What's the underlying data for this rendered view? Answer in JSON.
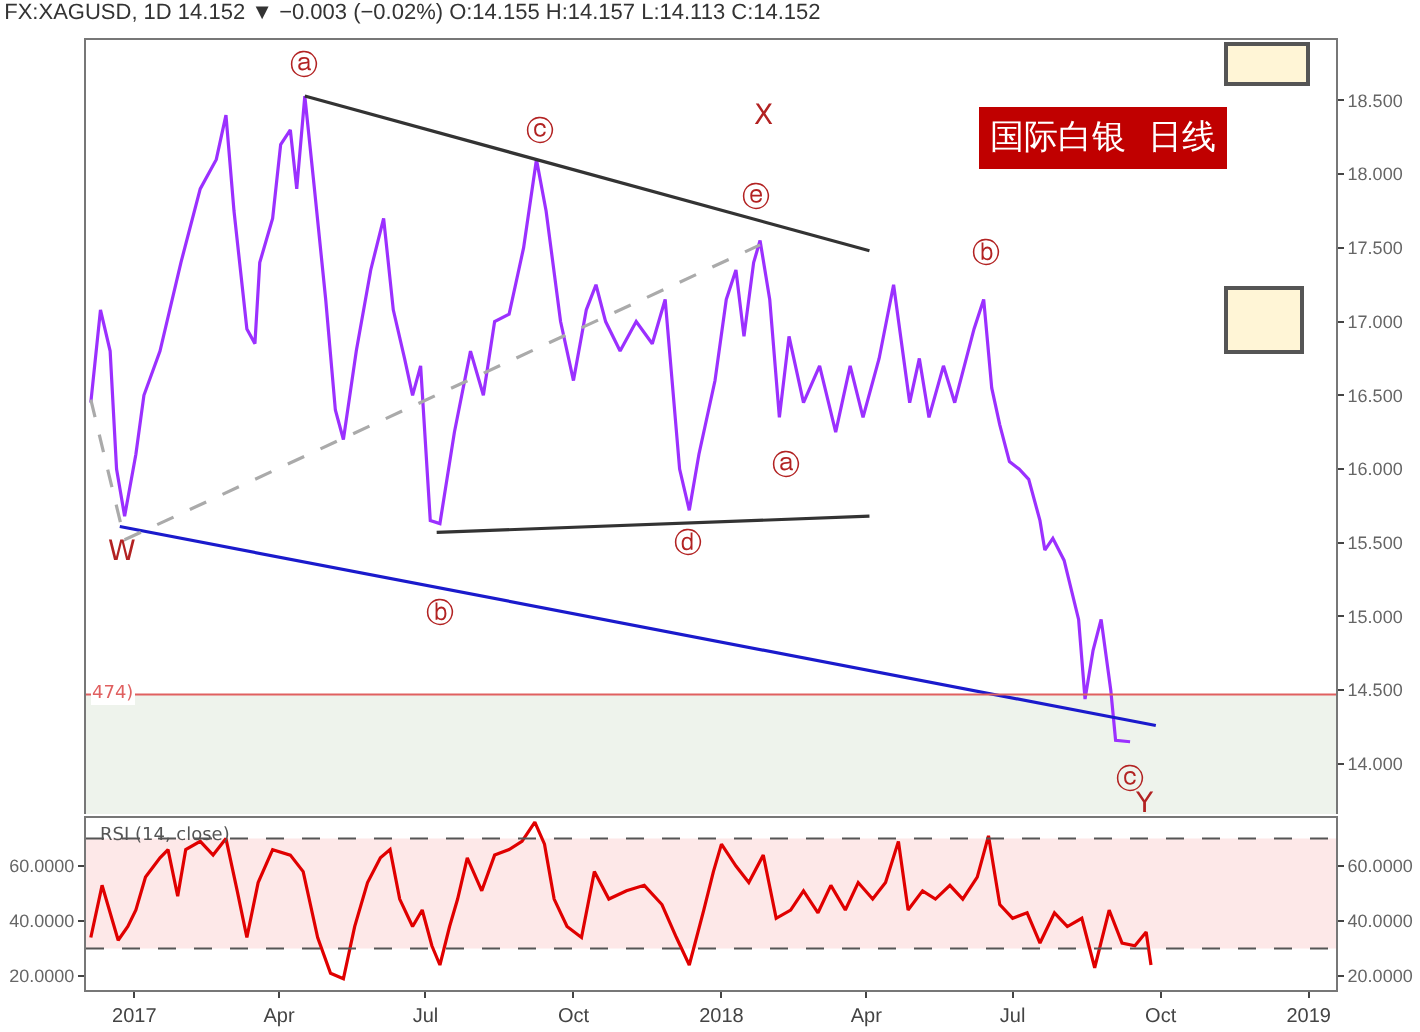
{
  "chart_data": [
    {
      "type": "line",
      "title": "FX:XAGUSD, 1D 14.152 ▼ −0.003 (−0.02%) O:14.155 H:14.157 L:14.113 C:14.152",
      "xlim": [
        "2016-12-02",
        "2019-01-18"
      ],
      "ylim": [
        13.66,
        18.91
      ],
      "yticks": [
        {
          "value": 14,
          "label": "14.000"
        },
        {
          "value": 14.5,
          "label": "14.500"
        },
        {
          "value": 15,
          "label": "15.000"
        },
        {
          "value": 15.5,
          "label": "15.500"
        },
        {
          "value": 16,
          "label": "16.000"
        },
        {
          "value": 16.5,
          "label": "16.500"
        },
        {
          "value": 17,
          "label": "17.000"
        },
        {
          "value": 17.5,
          "label": "17.500"
        },
        {
          "value": 18,
          "label": "18.000"
        },
        {
          "value": 18.5,
          "label": "18.500"
        }
      ],
      "tick_labels": "y",
      "grid": false,
      "series": [
        {
          "color": "#9b30ff",
          "x": [
            "2016-12-05",
            "2016-12-11",
            "2016-12-17",
            "2016-12-21",
            "2016-12-26",
            "2017-01-02",
            "2017-01-07",
            "2017-01-17",
            "2017-01-30",
            "2017-02-11",
            "2017-02-21",
            "2017-02-27",
            "2017-03-04",
            "2017-03-12",
            "2017-03-17",
            "2017-03-20",
            "2017-03-28",
            "2017-04-02",
            "2017-04-08",
            "2017-04-12",
            "2017-04-17",
            "2017-04-23",
            "2017-04-30",
            "2017-05-06",
            "2017-05-11",
            "2017-05-19",
            "2017-05-28",
            "2017-06-05",
            "2017-06-11",
            "2017-06-18",
            "2017-06-23",
            "2017-06-28",
            "2017-07-04",
            "2017-07-10",
            "2017-07-19",
            "2017-07-29",
            "2017-08-06",
            "2017-08-13",
            "2017-08-22",
            "2017-08-31",
            "2017-09-08",
            "2017-09-14",
            "2017-09-23",
            "2017-10-01",
            "2017-10-09",
            "2017-10-15",
            "2017-10-21",
            "2017-10-30",
            "2017-11-09",
            "2017-11-19",
            "2017-11-27",
            "2017-12-06",
            "2017-12-12",
            "2017-12-18",
            "2017-12-28",
            "2018-01-04",
            "2018-01-10",
            "2018-01-15",
            "2018-01-21",
            "2018-01-25",
            "2018-01-31",
            "2018-02-06",
            "2018-02-12",
            "2018-02-21",
            "2018-03-03",
            "2018-03-13",
            "2018-03-22",
            "2018-03-30",
            "2018-04-09",
            "2018-04-18",
            "2018-04-28",
            "2018-05-04",
            "2018-05-10",
            "2018-05-19",
            "2018-05-26",
            "2018-06-07",
            "2018-06-13",
            "2018-06-18",
            "2018-06-23",
            "2018-06-29",
            "2018-07-05",
            "2018-07-11",
            "2018-07-18",
            "2018-07-21",
            "2018-07-26",
            "2018-08-02",
            "2018-08-11",
            "2018-08-15",
            "2018-08-20",
            "2018-08-25",
            "2018-08-31",
            "2018-09-03",
            "2018-09-12"
          ],
          "values": [
            16.45,
            17.08,
            16.8,
            16.0,
            15.68,
            16.1,
            16.5,
            16.8,
            17.4,
            17.9,
            18.1,
            18.4,
            17.75,
            16.95,
            16.85,
            17.4,
            17.7,
            18.2,
            18.3,
            17.9,
            18.53,
            17.9,
            17.15,
            16.4,
            16.2,
            16.8,
            17.35,
            17.7,
            17.08,
            16.75,
            16.5,
            16.7,
            15.65,
            15.63,
            16.25,
            16.8,
            16.5,
            17.0,
            17.05,
            17.5,
            18.1,
            17.75,
            17.0,
            16.6,
            17.08,
            17.25,
            17.0,
            16.8,
            17.0,
            16.85,
            17.15,
            16.0,
            15.72,
            16.1,
            16.6,
            17.15,
            17.35,
            16.9,
            17.4,
            17.55,
            17.15,
            16.35,
            16.9,
            16.45,
            16.7,
            16.25,
            16.7,
            16.35,
            16.75,
            17.25,
            16.45,
            16.75,
            16.35,
            16.7,
            16.45,
            16.95,
            17.15,
            16.55,
            16.3,
            16.05,
            16.0,
            15.93,
            15.65,
            15.45,
            15.53,
            15.38,
            14.98,
            14.44,
            14.77,
            14.98,
            14.5,
            14.16,
            14.15
          ]
        },
        {
          "type": "line",
          "color": "#333333",
          "x": [
            "2017-04-17",
            "2018-04-03"
          ],
          "values": [
            18.53,
            17.48
          ]
        },
        {
          "type": "line",
          "color": "#333333",
          "x": [
            "2017-07-08",
            "2018-04-03"
          ],
          "values": [
            15.57,
            15.68
          ]
        },
        {
          "type": "line",
          "color": "#1a1acc",
          "x": [
            "2016-12-23",
            "2018-09-28"
          ],
          "values": [
            15.61,
            14.26
          ]
        },
        {
          "type": "line",
          "color": "#aaaaaa",
          "line_style": "dashed",
          "x": [
            "2016-12-05",
            "2016-12-26",
            "2018-01-25"
          ],
          "values": [
            16.47,
            15.52,
            17.52
          ]
        }
      ],
      "ref_lines": [
        {
          "axis": "y",
          "value": 14.47,
          "color": "#e06060"
        }
      ],
      "bands": [
        {
          "axis": "y",
          "from": 13.66,
          "to": 14.474,
          "color": "#eef3ec"
        }
      ],
      "annotations": [
        "ⓐ",
        "ⓒ",
        "ⓔ",
        "X",
        "ⓑ",
        "ⓐ",
        "ⓓ",
        "ⓑ",
        "W",
        "ⓒ",
        "Y",
        "国际白银  日线",
        "474)"
      ]
    },
    {
      "type": "line",
      "xlim": [
        "2016-12-02",
        "2019-01-18"
      ],
      "xticks": [
        {
          "value": "2017-01-01",
          "label": "2017"
        },
        {
          "value": "2017-04-01",
          "label": "Apr"
        },
        {
          "value": "2017-07-01",
          "label": "Jul"
        },
        {
          "value": "2017-10-01",
          "label": "Oct"
        },
        {
          "value": "2018-01-01",
          "label": "2018"
        },
        {
          "value": "2018-04-01",
          "label": "Apr"
        },
        {
          "value": "2018-07-01",
          "label": "Jul"
        },
        {
          "value": "2018-10-01",
          "label": "Oct"
        },
        {
          "value": "2019-01-01",
          "label": "2019"
        }
      ],
      "ylim": [
        14.9,
        77.5
      ],
      "yticks": [
        {
          "value": 20,
          "label": "20.0000"
        },
        {
          "value": 40,
          "label": "40.0000"
        },
        {
          "value": 60,
          "label": "60.0000"
        }
      ],
      "y2lim": [
        14.9,
        77.5
      ],
      "y2ticks": [
        {
          "value": 20,
          "label": "20.0000"
        },
        {
          "value": 40,
          "label": "40.0000"
        },
        {
          "value": 60,
          "label": "60.0000"
        }
      ],
      "grid": false,
      "series": [
        {
          "color": "#e00000",
          "x": [
            "2016-12-05",
            "2016-12-12",
            "2016-12-18",
            "2016-12-22",
            "2016-12-28",
            "2017-01-02",
            "2017-01-08",
            "2017-01-17",
            "2017-01-22",
            "2017-01-28",
            "2017-02-02",
            "2017-02-11",
            "2017-02-19",
            "2017-02-27",
            "2017-03-06",
            "2017-03-12",
            "2017-03-19",
            "2017-03-28",
            "2017-04-08",
            "2017-04-16",
            "2017-04-25",
            "2017-05-03",
            "2017-05-11",
            "2017-05-18",
            "2017-05-26",
            "2017-06-03",
            "2017-06-09",
            "2017-06-15",
            "2017-06-23",
            "2017-06-29",
            "2017-07-05",
            "2017-07-10",
            "2017-07-16",
            "2017-07-21",
            "2017-07-27",
            "2017-08-05",
            "2017-08-13",
            "2017-08-22",
            "2017-08-30",
            "2017-09-07",
            "2017-09-13",
            "2017-09-19",
            "2017-09-27",
            "2017-10-06",
            "2017-10-14",
            "2017-10-23",
            "2017-11-03",
            "2017-11-14",
            "2017-11-25",
            "2017-12-04",
            "2017-12-12",
            "2017-12-21",
            "2017-12-27",
            "2018-01-01",
            "2018-01-10",
            "2018-01-18",
            "2018-01-27",
            "2018-02-04",
            "2018-02-13",
            "2018-02-21",
            "2018-03-02",
            "2018-03-10",
            "2018-03-19",
            "2018-03-27",
            "2018-04-05",
            "2018-04-13",
            "2018-04-21",
            "2018-04-27",
            "2018-05-06",
            "2018-05-14",
            "2018-05-23",
            "2018-05-31",
            "2018-06-09",
            "2018-06-16",
            "2018-06-23",
            "2018-07-01",
            "2018-07-10",
            "2018-07-18",
            "2018-07-27",
            "2018-08-04",
            "2018-08-13",
            "2018-08-21",
            "2018-08-30",
            "2018-09-07",
            "2018-09-15",
            "2018-09-22",
            "2018-09-25"
          ],
          "values": [
            34,
            53,
            41,
            33,
            38,
            44,
            56,
            63,
            66,
            49,
            66,
            69,
            64,
            70,
            51,
            34,
            54,
            66,
            64,
            58,
            34,
            21,
            19,
            38,
            54,
            63,
            66,
            48,
            38,
            44,
            31,
            24,
            38,
            48,
            63,
            51,
            64,
            66,
            69,
            76,
            68,
            48,
            38,
            34,
            58,
            48,
            51,
            53,
            46,
            34,
            24,
            44,
            58,
            68,
            60,
            54,
            64,
            41,
            44,
            51,
            43,
            53,
            44,
            54,
            48,
            54,
            69,
            44,
            51,
            48,
            53,
            48,
            56,
            71,
            46,
            41,
            43,
            32,
            43,
            38,
            41,
            23,
            44,
            32,
            31,
            36,
            24
          ]
        }
      ],
      "ref_lines": [
        {
          "axis": "y",
          "value": 70,
          "color": "#555555",
          "line_style": "dashed"
        },
        {
          "axis": "y",
          "value": 30,
          "color": "#555555",
          "line_style": "dashed"
        }
      ],
      "bands": [
        {
          "axis": "y",
          "from": 30,
          "to": 70,
          "color": "#fde8e8"
        }
      ],
      "annotations": [
        "RSI (14, close)"
      ]
    }
  ]
}
